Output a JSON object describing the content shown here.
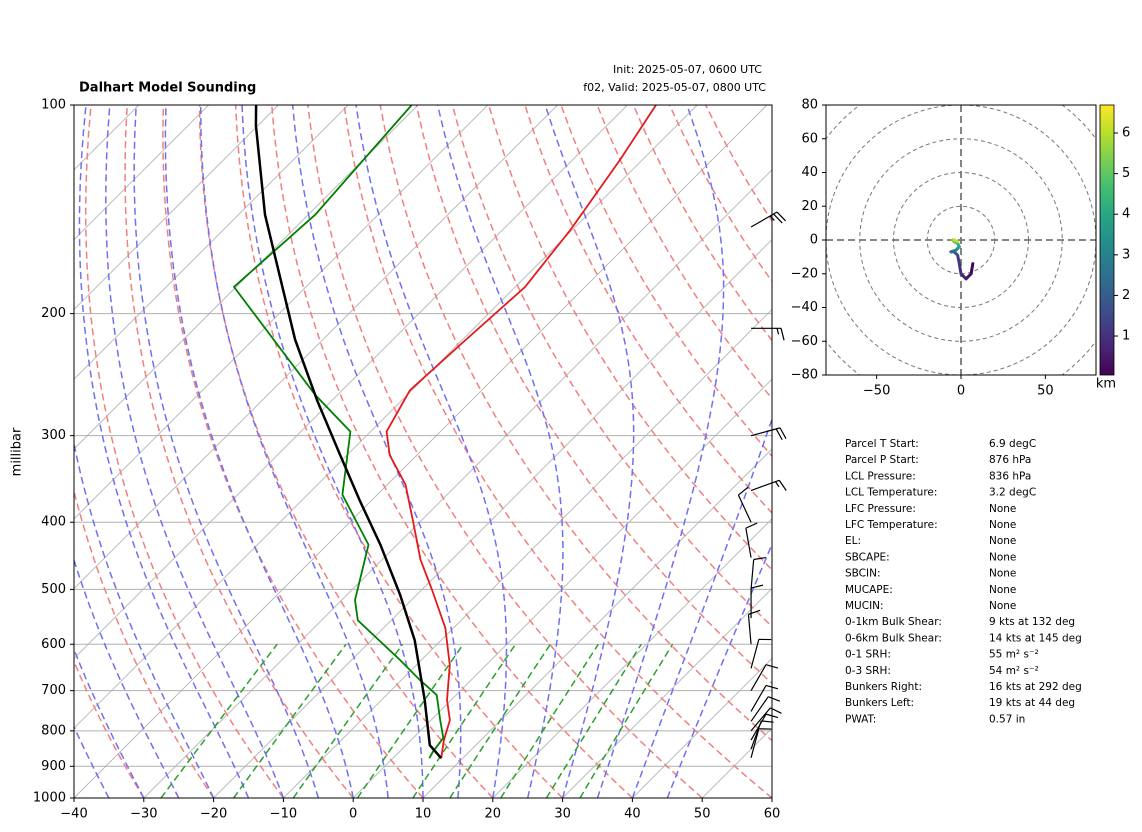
{
  "chart_data": [
    {
      "type": "skewt",
      "title": "Dalhart Model Sounding",
      "init": "Init: 2025-05-07, 0600 UTC",
      "valid": "f02, Valid: 2025-05-07, 0800 UTC",
      "ylabel": "millibar",
      "xlim": [
        -40,
        60
      ],
      "ylim": [
        1000,
        100
      ],
      "xticks": [
        {
          "value": -40,
          "label": "−40"
        },
        {
          "value": -30,
          "label": "−30"
        },
        {
          "value": -20,
          "label": "−20"
        },
        {
          "value": -10,
          "label": "−10"
        },
        0,
        10,
        20,
        30,
        40,
        50,
        60
      ],
      "yticks": [
        100,
        200,
        300,
        400,
        500,
        600,
        700,
        800,
        900,
        1000
      ],
      "grid": true,
      "series": [
        {
          "color": "#e31a1c",
          "pressure": [
            876,
            825,
            772,
            722,
            643,
            568,
            501,
            453,
            397,
            353,
            320,
            296,
            258,
            222,
            183,
            151,
            120,
            100
          ],
          "values": [
            6.9,
            4.7,
            2.7,
            -0.6,
            -5.2,
            -11.2,
            -18.5,
            -24.5,
            -31.3,
            -37.4,
            -43.9,
            -47.7,
            -50.3,
            -49.6,
            -48.6,
            -50.3,
            -53.2,
            -55.9
          ]
        },
        {
          "color": "#008000",
          "pressure": [
            876,
            858,
            819,
            772,
            710,
            676,
            632,
            554,
            518,
            431,
            365,
            296,
            262,
            183,
            144,
            100
          ],
          "values": [
            5.2,
            4.8,
            4.3,
            1.3,
            -2.8,
            -7.3,
            -13.1,
            -24.8,
            -28.1,
            -34.1,
            -45,
            -52.9,
            -63.2,
            -90.3,
            -89,
            -90.9
          ]
        },
        {
          "color": "#000000",
          "pressure": [
            876,
            839,
            722,
            592,
            509,
            431,
            372,
            320,
            267,
            218,
            144,
            107,
            100
          ],
          "values": [
            6.9,
            3.4,
            -3.8,
            -13.8,
            -22.4,
            -32.4,
            -41.7,
            -51,
            -62.1,
            -74,
            -96.2,
            -110.3,
            -113.2
          ]
        }
      ],
      "wind": {
        "pressure": [
          875,
          850,
          825,
          800,
          775,
          750,
          700,
          650,
          600,
          550,
          500,
          450,
          400,
          360,
          300,
          210,
          150
        ],
        "direction": [
          15,
          20,
          30,
          40,
          35,
          30,
          30,
          15,
          355,
          0,
          5,
          350,
          335,
          70,
          75,
          90,
          60
        ],
        "speed": [
          10,
          10,
          10,
          10,
          10,
          10,
          10,
          10,
          10,
          10,
          10,
          10,
          10,
          15,
          20,
          15,
          25
        ]
      }
    },
    {
      "type": "hodograph",
      "xlim": [
        -80,
        80
      ],
      "ylim": [
        -80,
        80
      ],
      "xticks": [
        {
          "value": -50,
          "label": "−50"
        },
        0,
        50
      ],
      "yticks": [
        {
          "value": -80,
          "label": "−80"
        },
        {
          "value": -60,
          "label": "−60"
        },
        {
          "value": -40,
          "label": "−40"
        },
        {
          "value": -20,
          "label": "−20"
        },
        0,
        20,
        40,
        60,
        80
      ],
      "u": [
        7,
        6,
        3,
        0,
        -1,
        -2,
        -4,
        -6,
        -3,
        -2,
        -1,
        -2,
        -4,
        -5,
        -4,
        -2
      ],
      "v": [
        -14,
        -20,
        -23,
        -20,
        -14,
        -9,
        -7,
        -7,
        -6,
        -5,
        -4,
        -2,
        -1,
        0,
        0,
        -1
      ],
      "height": [
        0.1,
        0.3,
        0.6,
        0.9,
        1.2,
        1.6,
        2.0,
        2.5,
        3.0,
        3.5,
        4.0,
        4.5,
        5.0,
        5.5,
        6.0,
        6.5
      ],
      "colormap": "viridis",
      "clim": [
        0.04,
        6.69
      ],
      "cticks": [
        1,
        2,
        3,
        4,
        5,
        6
      ],
      "clabel": "km"
    }
  ],
  "parameters": [
    [
      "Parcel T Start:",
      "6.9 degC"
    ],
    [
      "Parcel P Start:",
      "876 hPa"
    ],
    [
      "LCL Pressure:",
      "836 hPa"
    ],
    [
      "LCL Temperature:",
      "3.2 degC"
    ],
    [
      "LFC Pressure:",
      "None"
    ],
    [
      "LFC Temperature:",
      "None"
    ],
    [
      "EL:",
      "None"
    ],
    [
      "SBCAPE:",
      "None"
    ],
    [
      "SBCIN:",
      "None"
    ],
    [
      "MUCAPE:",
      "None"
    ],
    [
      "MUCIN:",
      "None"
    ],
    [
      "0-1km Bulk Shear:",
      "9 kts at 132 deg"
    ],
    [
      "0-6km Bulk Shear:",
      "14 kts at 145 deg"
    ],
    [
      "0-1 SRH:",
      "55 m² s⁻²"
    ],
    [
      "0-3 SRH:",
      "54 m² s⁻²"
    ],
    [
      "Bunkers Right:",
      "16 kts at 292 deg"
    ],
    [
      "Bunkers Left:",
      "19 kts at 44 deg"
    ],
    [
      "PWAT:",
      "0.57 in"
    ]
  ]
}
